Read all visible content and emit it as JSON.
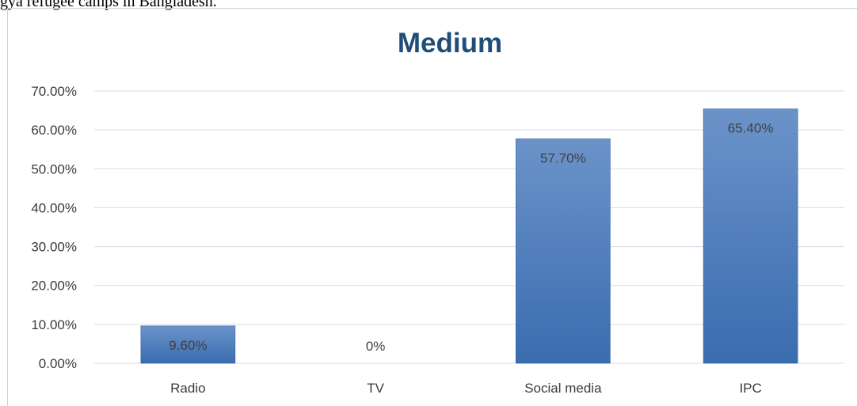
{
  "document": {
    "caption_fragment": "gya refugee camps in Bangladesh."
  },
  "chart_data": {
    "type": "bar",
    "title": "Medium",
    "xlabel": "",
    "ylabel": "",
    "categories": [
      "Radio",
      "TV",
      "Social media",
      "IPC"
    ],
    "values": [
      9.6,
      0,
      57.7,
      65.4
    ],
    "data_labels": [
      "9.60%",
      "0%",
      "57.70%",
      "65.40%"
    ],
    "y_ticks": [
      "0.00%",
      "10.00%",
      "20.00%",
      "30.00%",
      "40.00%",
      "50.00%",
      "60.00%",
      "70.00%"
    ],
    "ylim": [
      0,
      70
    ],
    "grid": true,
    "legend": "none"
  },
  "colors": {
    "title": "#1f4e79",
    "bar_top": "#6b93c9",
    "bar_bottom": "#3a6cb0",
    "bar_edge": "#2f5f9e",
    "gridline": "#d5dde6",
    "axis_text": "#3b3b3b",
    "data_label": "#404040"
  }
}
